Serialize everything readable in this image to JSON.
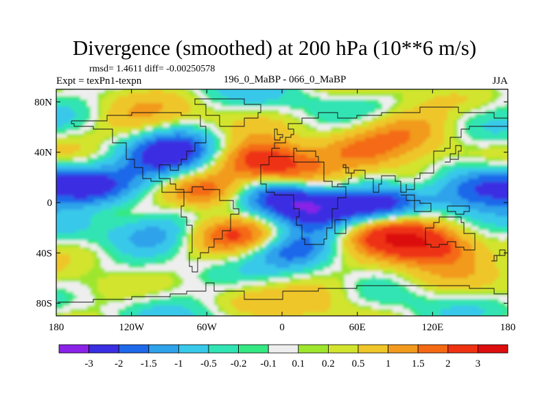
{
  "title": "Divergence (smoothed) at 200 hPa (10**6 m/s)",
  "stats": "rmsd= 1.4611 diff= -0.00250578",
  "left_string": "Expt = texPn1-texpn",
  "center_string": "196_0_MaBP - 066_0_MaBP",
  "right_string": "JJA",
  "chart_data": {
    "type": "heatmap",
    "variable": "Divergence (smoothed) at 200 hPa",
    "units": "10**6 m/s",
    "season": "JJA",
    "x_range": [
      -180,
      180
    ],
    "y_range": [
      -90,
      90
    ],
    "x_ticks": [
      {
        "value": -180,
        "label": "180"
      },
      {
        "value": -120,
        "label": "120W"
      },
      {
        "value": -60,
        "label": "60W"
      },
      {
        "value": 0,
        "label": "0"
      },
      {
        "value": 60,
        "label": "60E"
      },
      {
        "value": 120,
        "label": "120E"
      },
      {
        "value": 180,
        "label": "180"
      }
    ],
    "y_ticks": [
      {
        "value": 80,
        "label": "80N"
      },
      {
        "value": 40,
        "label": "40N"
      },
      {
        "value": 0,
        "label": "0"
      },
      {
        "value": -40,
        "label": "40S"
      },
      {
        "value": -80,
        "label": "80S"
      }
    ],
    "contour_levels": [
      -3,
      -2,
      -1.5,
      -1,
      -0.5,
      -0.2,
      -0.1,
      0.1,
      0.2,
      0.5,
      1,
      1.5,
      2,
      3
    ],
    "colors": [
      "#8a22e8",
      "#3a2ee2",
      "#1e68ea",
      "#2ea2ea",
      "#38c8ea",
      "#30e4b4",
      "#34e882",
      "#eeeeee",
      "#9ee62e",
      "#d2e42e",
      "#eec62a",
      "#f29a1e",
      "#f46a14",
      "#ee3212",
      "#dc0e0e"
    ],
    "features": [
      {
        "lon": -150,
        "lat": 12,
        "value": -2
      },
      {
        "lon": -95,
        "lat": 28,
        "value": -1.5
      },
      {
        "lon": -62,
        "lat": 8,
        "value": 2.5
      },
      {
        "lon": -82,
        "lat": 42,
        "value": -2
      },
      {
        "lon": 0,
        "lat": 8,
        "value": -3
      },
      {
        "lon": 80,
        "lat": -2,
        "value": -3
      },
      {
        "lon": 25,
        "lat": -5,
        "value": -2
      },
      {
        "lon": -15,
        "lat": 35,
        "value": 2.5
      },
      {
        "lon": 10,
        "lat": 22,
        "value": 1.5
      },
      {
        "lon": 60,
        "lat": 40,
        "value": 1.5
      },
      {
        "lon": 105,
        "lat": 18,
        "value": 1.5
      },
      {
        "lon": 85,
        "lat": -25,
        "value": 2.5
      },
      {
        "lon": 120,
        "lat": -35,
        "value": 2.5
      },
      {
        "lon": -30,
        "lat": -25,
        "value": 2
      },
      {
        "lon": -160,
        "lat": -15,
        "value": -1
      },
      {
        "lon": -100,
        "lat": -25,
        "value": -1.5
      },
      {
        "lon": 10,
        "lat": -38,
        "value": -2
      },
      {
        "lon": -150,
        "lat": -40,
        "value": 1
      },
      {
        "lon": 160,
        "lat": 20,
        "value": -1.5
      },
      {
        "lon": 140,
        "lat": 5,
        "value": -1
      },
      {
        "lon": -120,
        "lat": 60,
        "value": 1
      },
      {
        "lon": 100,
        "lat": 60,
        "value": 1
      },
      {
        "lon": 40,
        "lat": -70,
        "value": 1
      }
    ]
  }
}
